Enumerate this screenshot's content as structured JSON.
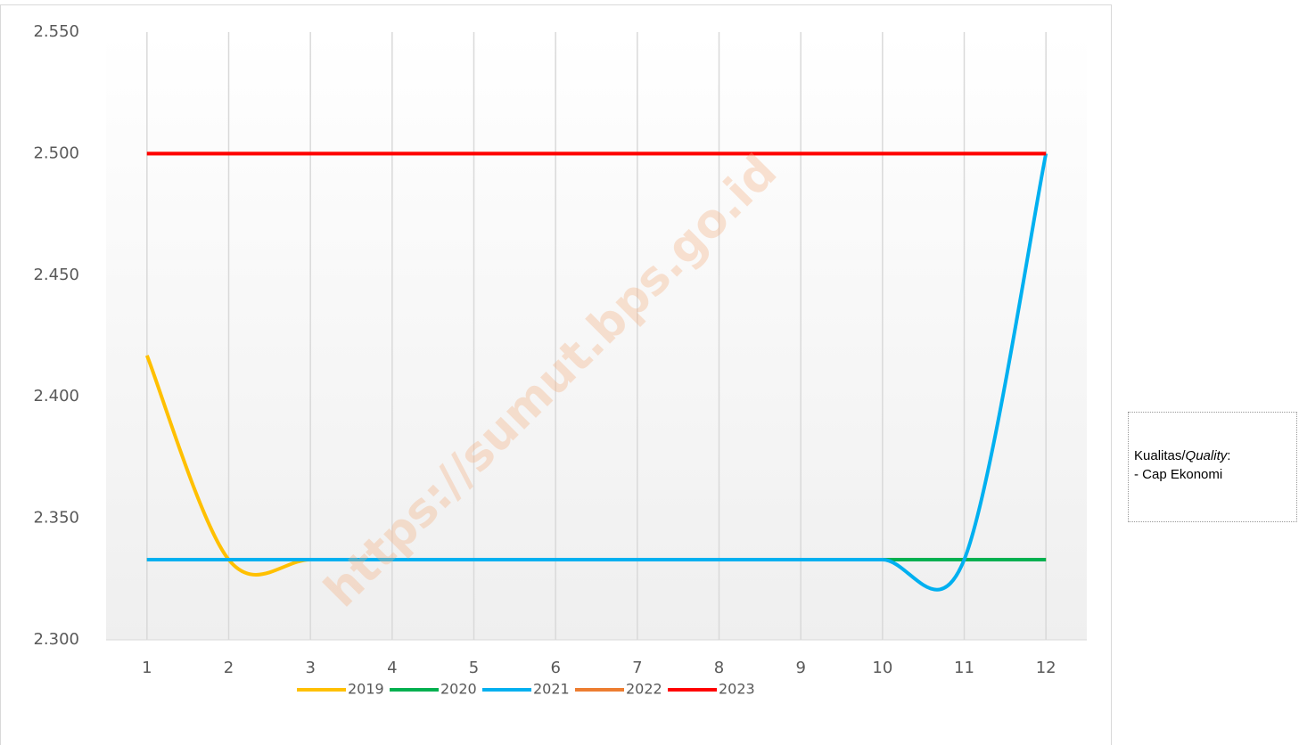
{
  "chart_data": {
    "type": "line",
    "smooth": true,
    "categories": [
      "1",
      "2",
      "3",
      "4",
      "5",
      "6",
      "7",
      "8",
      "9",
      "10",
      "11",
      "12"
    ],
    "series": [
      {
        "name": "2019",
        "color": "#ffc000",
        "values": [
          2417,
          2333,
          2333,
          2333,
          2333,
          2333,
          2333,
          2333,
          2333,
          2333,
          2333,
          2333
        ]
      },
      {
        "name": "2020",
        "color": "#00b050",
        "values": [
          2333,
          2333,
          2333,
          2333,
          2333,
          2333,
          2333,
          2333,
          2333,
          2333,
          2333,
          2333
        ]
      },
      {
        "name": "2021",
        "color": "#00b0f0",
        "values": [
          2333,
          2333,
          2333,
          2333,
          2333,
          2333,
          2333,
          2333,
          2333,
          2333,
          2333,
          2500
        ]
      },
      {
        "name": "2022",
        "color": "#ed7d31",
        "values": [
          2500,
          2500,
          2500,
          2500,
          2500,
          2500,
          2500,
          2500,
          2500,
          2500,
          2500,
          2500
        ]
      },
      {
        "name": "2023",
        "color": "#ff0000",
        "values": [
          2500,
          2500,
          2500,
          2500,
          2500,
          2500,
          2500,
          2500,
          2500,
          2500,
          2500,
          2500
        ]
      }
    ],
    "ylim": [
      2300,
      2550
    ],
    "yticks": [
      {
        "value": 2300,
        "label": "2.300"
      },
      {
        "value": 2350,
        "label": "2.350"
      },
      {
        "value": 2400,
        "label": "2.400"
      },
      {
        "value": 2450,
        "label": "2.450"
      },
      {
        "value": 2500,
        "label": "2.500"
      },
      {
        "value": 2550,
        "label": "2.550"
      }
    ],
    "grid": true,
    "legend": "bottom"
  },
  "watermark": "https://sumut.bps.go.id",
  "note": {
    "prefix": "Kualitas/",
    "italic": "Quality",
    "suffix": ":",
    "item": "- Cap Ekonomi"
  }
}
